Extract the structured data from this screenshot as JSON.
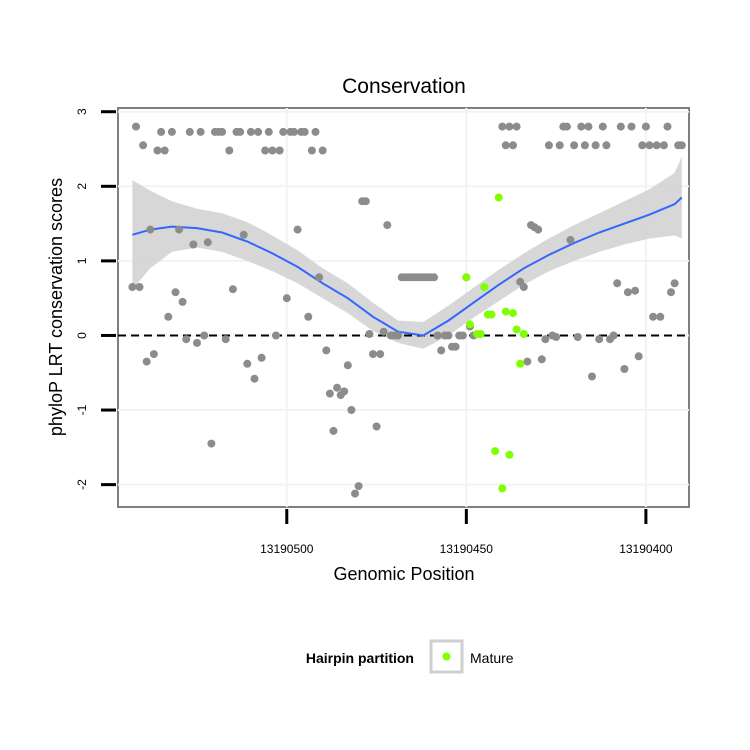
{
  "chart_data": {
    "type": "scatter",
    "title": "Conservation",
    "xlabel": "Genomic Position",
    "ylabel": "phyloP LRT conservation scores",
    "xlim": [
      13190547,
      13190388
    ],
    "ylim": [
      -2.3,
      3.05
    ],
    "x_reversed": true,
    "x_ticks": [
      13190500,
      13190450,
      13190400
    ],
    "x_tick_labels": [
      "13190500",
      "13190450",
      "13190400"
    ],
    "y_ticks": [
      -2,
      -1,
      0,
      1,
      2,
      3
    ],
    "y_tick_labels": [
      "-2",
      "-1",
      "0",
      "1",
      "2",
      "3"
    ],
    "reference_line": {
      "y": 0,
      "style": "dashed",
      "color": "#000000"
    },
    "legend": {
      "title": "Hairpin partition",
      "position": "bottom",
      "entries": [
        {
          "label": "Mature",
          "color": "#7FFF00"
        }
      ]
    },
    "colors": {
      "other": "#8C8C8C",
      "mature": "#7FFF00",
      "smooth_line": "#3366FF",
      "confidence_band": "#D3D3D3",
      "panel_border": "#7F7F7F",
      "grid": "#F3F3F3"
    },
    "series": [
      {
        "name": "Other",
        "color": "#8C8C8C",
        "x": [
          13190543,
          13190542,
          13190541,
          13190540,
          13190539,
          13190538,
          13190537,
          13190536,
          13190535,
          13190534,
          13190533,
          13190532,
          13190531,
          13190530,
          13190529,
          13190528,
          13190527,
          13190526,
          13190525,
          13190524,
          13190523,
          13190522,
          13190521,
          13190520,
          13190519,
          13190518,
          13190517,
          13190516,
          13190515,
          13190514,
          13190513,
          13190512,
          13190511,
          13190510,
          13190509,
          13190508,
          13190507,
          13190506,
          13190505,
          13190504,
          13190503,
          13190502,
          13190501,
          13190500,
          13190499,
          13190498,
          13190497,
          13190496,
          13190495,
          13190494,
          13190493,
          13190492,
          13190491,
          13190490,
          13190489,
          13190488,
          13190487,
          13190486,
          13190485,
          13190484,
          13190483,
          13190482,
          13190481,
          13190480,
          13190479,
          13190478,
          13190477,
          13190476,
          13190475,
          13190474,
          13190473,
          13190472,
          13190471,
          13190470,
          13190469,
          13190468,
          13190467,
          13190466,
          13190465,
          13190464,
          13190463,
          13190462,
          13190461,
          13190460,
          13190459,
          13190458,
          13190457,
          13190456,
          13190455,
          13190454,
          13190453,
          13190452,
          13190451,
          13190450,
          13190449,
          13190448,
          13190440,
          13190439,
          13190438,
          13190437,
          13190436,
          13190435,
          13190434,
          13190433,
          13190432,
          13190431,
          13190430,
          13190429,
          13190428,
          13190427,
          13190426,
          13190425,
          13190424,
          13190423,
          13190422,
          13190421,
          13190420,
          13190419,
          13190418,
          13190417,
          13190416,
          13190415,
          13190414,
          13190413,
          13190412,
          13190411,
          13190410,
          13190409,
          13190408,
          13190407,
          13190406,
          13190405,
          13190404,
          13190403,
          13190402,
          13190401,
          13190400,
          13190399,
          13190398,
          13190397,
          13190396,
          13190395,
          13190394,
          13190393,
          13190392,
          13190391,
          13190390
        ],
        "y": [
          0.65,
          2.8,
          0.65,
          2.55,
          -0.35,
          1.42,
          -0.25,
          2.48,
          2.73,
          2.48,
          0.25,
          2.73,
          0.58,
          1.42,
          0.45,
          -0.05,
          2.73,
          1.22,
          -0.1,
          2.73,
          0.0,
          1.25,
          -1.45,
          2.73,
          2.73,
          2.73,
          -0.05,
          2.48,
          0.62,
          2.73,
          2.73,
          1.35,
          -0.38,
          2.73,
          -0.58,
          2.73,
          -0.3,
          2.48,
          2.73,
          2.48,
          0.0,
          2.48,
          2.73,
          0.5,
          2.73,
          2.73,
          1.42,
          2.73,
          2.73,
          0.25,
          2.48,
          2.73,
          0.78,
          2.48,
          -0.2,
          -0.78,
          -1.28,
          -0.7,
          -0.8,
          -0.75,
          -0.4,
          -1.0,
          -2.12,
          -2.02,
          1.8,
          1.8,
          0.02,
          -0.25,
          -1.22,
          -0.25,
          0.05,
          1.48,
          0.0,
          0.0,
          0.0,
          0.78,
          0.78,
          0.78,
          0.78,
          0.78,
          0.78,
          0.78,
          0.78,
          0.78,
          0.78,
          0.0,
          -0.2,
          0.0,
          0.0,
          -0.15,
          -0.15,
          0.0,
          0.0,
          0.78,
          0.12,
          0.0,
          2.8,
          2.55,
          2.8,
          2.55,
          2.8,
          0.72,
          0.65,
          -0.35,
          1.48,
          1.45,
          1.42,
          -0.32,
          -0.05,
          2.55,
          0.0,
          -0.02,
          2.55,
          2.8,
          2.8,
          1.28,
          2.55,
          -0.02,
          2.8,
          2.55,
          2.8,
          -0.55,
          2.55,
          -0.05,
          2.8,
          2.55,
          -0.05,
          0.0,
          0.7,
          2.8,
          -0.45,
          0.58,
          2.8,
          0.6,
          -0.28,
          2.55,
          2.8,
          2.55,
          0.25,
          2.55,
          0.25,
          2.55,
          2.8,
          0.58,
          0.7,
          2.55,
          2.55
        ]
      },
      {
        "name": "Mature",
        "color": "#7FFF00",
        "x": [
          13190450,
          13190449,
          13190447,
          13190446,
          13190445,
          13190444,
          13190443,
          13190442,
          13190441,
          13190440,
          13190439,
          13190438,
          13190437,
          13190436,
          13190435,
          13190434
        ],
        "y": [
          0.78,
          0.15,
          0.02,
          0.02,
          0.65,
          0.28,
          0.28,
          -1.55,
          1.85,
          -2.05,
          0.32,
          -1.6,
          0.3,
          0.08,
          -0.38,
          0.02
        ]
      }
    ],
    "smooth": {
      "method": "loess",
      "x": [
        13190543,
        13190538,
        13190532,
        13190525,
        13190518,
        13190511,
        13190504,
        13190497,
        13190490,
        13190483,
        13190476,
        13190469,
        13190462,
        13190455,
        13190448,
        13190441,
        13190434,
        13190427,
        13190420,
        13190413,
        13190406,
        13190399,
        13190392,
        13190390
      ],
      "y": [
        1.35,
        1.42,
        1.46,
        1.44,
        1.38,
        1.26,
        1.1,
        0.92,
        0.7,
        0.5,
        0.25,
        0.05,
        0.0,
        0.2,
        0.44,
        0.68,
        0.9,
        1.08,
        1.24,
        1.38,
        1.5,
        1.62,
        1.76,
        1.85
      ],
      "lower": [
        0.62,
        0.9,
        1.12,
        1.18,
        1.12,
        1.0,
        0.86,
        0.7,
        0.5,
        0.3,
        0.06,
        -0.1,
        -0.18,
        0.0,
        0.24,
        0.46,
        0.68,
        0.86,
        1.0,
        1.12,
        1.22,
        1.3,
        1.34,
        1.3
      ],
      "upper": [
        2.08,
        1.94,
        1.8,
        1.7,
        1.64,
        1.52,
        1.34,
        1.14,
        0.9,
        0.7,
        0.44,
        0.2,
        0.18,
        0.4,
        0.64,
        0.88,
        1.1,
        1.3,
        1.48,
        1.64,
        1.8,
        1.96,
        2.18,
        2.4
      ]
    }
  }
}
